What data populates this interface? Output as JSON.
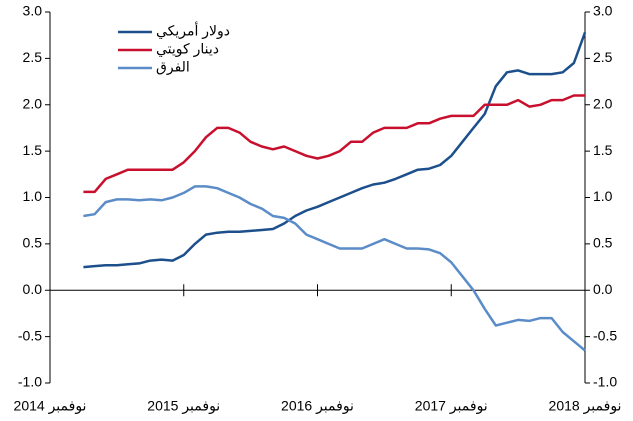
{
  "chart_data": {
    "type": "line",
    "x": [
      "2015-02",
      "2015-03",
      "2015-04",
      "2015-05",
      "2015-06",
      "2015-07",
      "2015-08",
      "2015-09",
      "2015-10",
      "2015-11",
      "2015-12",
      "2016-01",
      "2016-02",
      "2016-03",
      "2016-04",
      "2016-05",
      "2016-06",
      "2016-07",
      "2016-08",
      "2016-09",
      "2016-10",
      "2016-11",
      "2016-12",
      "2017-01",
      "2017-02",
      "2017-03",
      "2017-04",
      "2017-05",
      "2017-06",
      "2017-07",
      "2017-08",
      "2017-09",
      "2017-10",
      "2017-11",
      "2017-12",
      "2018-01",
      "2018-02",
      "2018-03",
      "2018-04",
      "2018-05",
      "2018-06",
      "2018-07",
      "2018-08",
      "2018-09",
      "2018-10",
      "2018-11"
    ],
    "series": [
      {
        "name": "دولار أمريكي",
        "color": "#1c4f8c",
        "values": [
          0.25,
          0.26,
          0.27,
          0.27,
          0.28,
          0.29,
          0.32,
          0.33,
          0.32,
          0.38,
          0.5,
          0.6,
          0.62,
          0.63,
          0.63,
          0.64,
          0.65,
          0.66,
          0.72,
          0.8,
          0.86,
          0.9,
          0.95,
          1.0,
          1.05,
          1.1,
          1.14,
          1.16,
          1.2,
          1.25,
          1.3,
          1.31,
          1.35,
          1.45,
          1.6,
          1.75,
          1.9,
          2.2,
          2.35,
          2.37,
          2.33,
          2.33,
          2.33,
          2.35,
          2.45,
          2.78
        ]
      },
      {
        "name": "دينار كويتي",
        "color": "#c8102e",
        "values": [
          1.06,
          1.06,
          1.2,
          1.25,
          1.3,
          1.3,
          1.3,
          1.3,
          1.3,
          1.38,
          1.5,
          1.65,
          1.75,
          1.75,
          1.7,
          1.6,
          1.55,
          1.52,
          1.55,
          1.5,
          1.45,
          1.42,
          1.45,
          1.5,
          1.6,
          1.6,
          1.7,
          1.75,
          1.75,
          1.75,
          1.8,
          1.8,
          1.85,
          1.88,
          1.88,
          1.88,
          2.0,
          2.0,
          2.0,
          2.05,
          1.98,
          2.0,
          2.05,
          2.05,
          2.1,
          2.1
        ]
      },
      {
        "name": "الفرق",
        "color": "#5b8cc8",
        "values": [
          0.8,
          0.82,
          0.95,
          0.98,
          0.98,
          0.97,
          0.98,
          0.97,
          1.0,
          1.05,
          1.12,
          1.12,
          1.1,
          1.05,
          1.0,
          0.93,
          0.88,
          0.8,
          0.78,
          0.72,
          0.6,
          0.55,
          0.5,
          0.45,
          0.45,
          0.45,
          0.5,
          0.55,
          0.5,
          0.45,
          0.45,
          0.44,
          0.4,
          0.3,
          0.15,
          0.0,
          -0.2,
          -0.38,
          -0.35,
          -0.32,
          -0.33,
          -0.3,
          -0.3,
          -0.45,
          -0.55,
          -0.65
        ]
      }
    ],
    "xlim": [
      "2014-11",
      "2018-11"
    ],
    "xticks": [
      {
        "value": "2014-11",
        "label": "نوفمبر 2014"
      },
      {
        "value": "2015-11",
        "label": "نوفمبر 2015"
      },
      {
        "value": "2016-11",
        "label": "نوفمبر 2016"
      },
      {
        "value": "2017-11",
        "label": "نوفمبر 2017"
      },
      {
        "value": "2018-11",
        "label": "نوفمبر 2018"
      }
    ],
    "ylim": [
      -1,
      3
    ],
    "yticks": [
      {
        "value": 3,
        "label": "3.0"
      },
      2.5,
      {
        "value": 2,
        "label": "2.0"
      },
      1.5,
      {
        "value": 1,
        "label": "1.0"
      },
      0.5,
      {
        "value": 0,
        "label": "0.0"
      },
      -0.5,
      {
        "value": -1,
        "label": "-1.0"
      }
    ],
    "y2lim": [
      -1,
      3
    ],
    "y2ticks": [
      {
        "value": 3,
        "label": "3.0"
      },
      2.5,
      {
        "value": 2,
        "label": "2.0"
      },
      1.5,
      {
        "value": 1,
        "label": "1.0"
      },
      0.5,
      {
        "value": 0,
        "label": "0.0"
      },
      -0.5,
      {
        "value": -1,
        "label": "-1.0"
      }
    ],
    "grid": false,
    "legend": "top-left"
  }
}
